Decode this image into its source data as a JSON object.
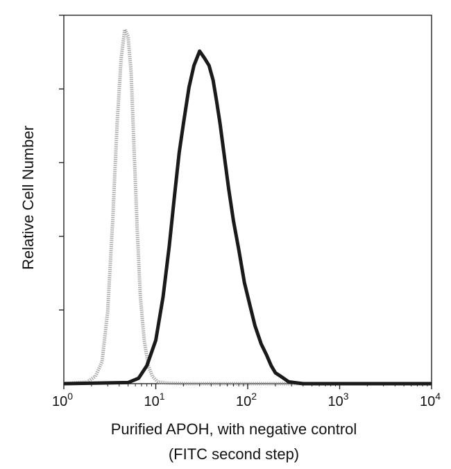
{
  "chart_data": {
    "type": "line",
    "title": "",
    "xlabel": "Purified APOH, with negative control",
    "xlabel_line2": "(FITC second step)",
    "ylabel": "Relative Cell Number",
    "x_scale": "log",
    "xlim": [
      1,
      10000
    ],
    "ylim": [
      0,
      100
    ],
    "x_ticks": [
      {
        "value": 1,
        "base": "10",
        "exp": "0"
      },
      {
        "value": 10,
        "base": "10",
        "exp": "1"
      },
      {
        "value": 100,
        "base": "10",
        "exp": "2"
      },
      {
        "value": 1000,
        "base": "10",
        "exp": "3"
      },
      {
        "value": 10000,
        "base": "10",
        "exp": "4"
      }
    ],
    "y_tick_count": 5,
    "grid": false,
    "legend": "none",
    "series": [
      {
        "style": "dotted",
        "color": "#9a9a9a",
        "x": [
          1,
          1.8,
          2.2,
          2.6,
          3.0,
          3.4,
          3.8,
          4.2,
          4.6,
          5.0,
          5.4,
          5.8,
          6.3,
          6.8,
          7.5,
          8.3,
          9.2,
          10.5,
          13,
          20,
          100,
          1000,
          10000
        ],
        "y": [
          0,
          0.5,
          2,
          6,
          20,
          45,
          72,
          90,
          98,
          96,
          86,
          65,
          42,
          24,
          12,
          5,
          2,
          0.5,
          0.2,
          0,
          0,
          0,
          0
        ]
      },
      {
        "style": "solid",
        "color": "#1a1a1a",
        "x": [
          1,
          5,
          6.5,
          8,
          10,
          12,
          14,
          16,
          18,
          20,
          23,
          26,
          30,
          34,
          38,
          42,
          46,
          50,
          55,
          62,
          70,
          80,
          92,
          105,
          120,
          140,
          160,
          180,
          200,
          230,
          280,
          400,
          1000,
          10000
        ],
        "y": [
          0,
          0.3,
          1.5,
          5,
          12,
          24,
          38,
          52,
          64,
          72,
          82,
          88,
          92,
          90,
          88,
          84,
          78,
          72,
          64,
          54,
          45,
          37,
          28,
          22,
          16,
          11,
          8,
          5,
          3,
          2,
          0.5,
          0,
          0,
          0
        ]
      }
    ]
  }
}
